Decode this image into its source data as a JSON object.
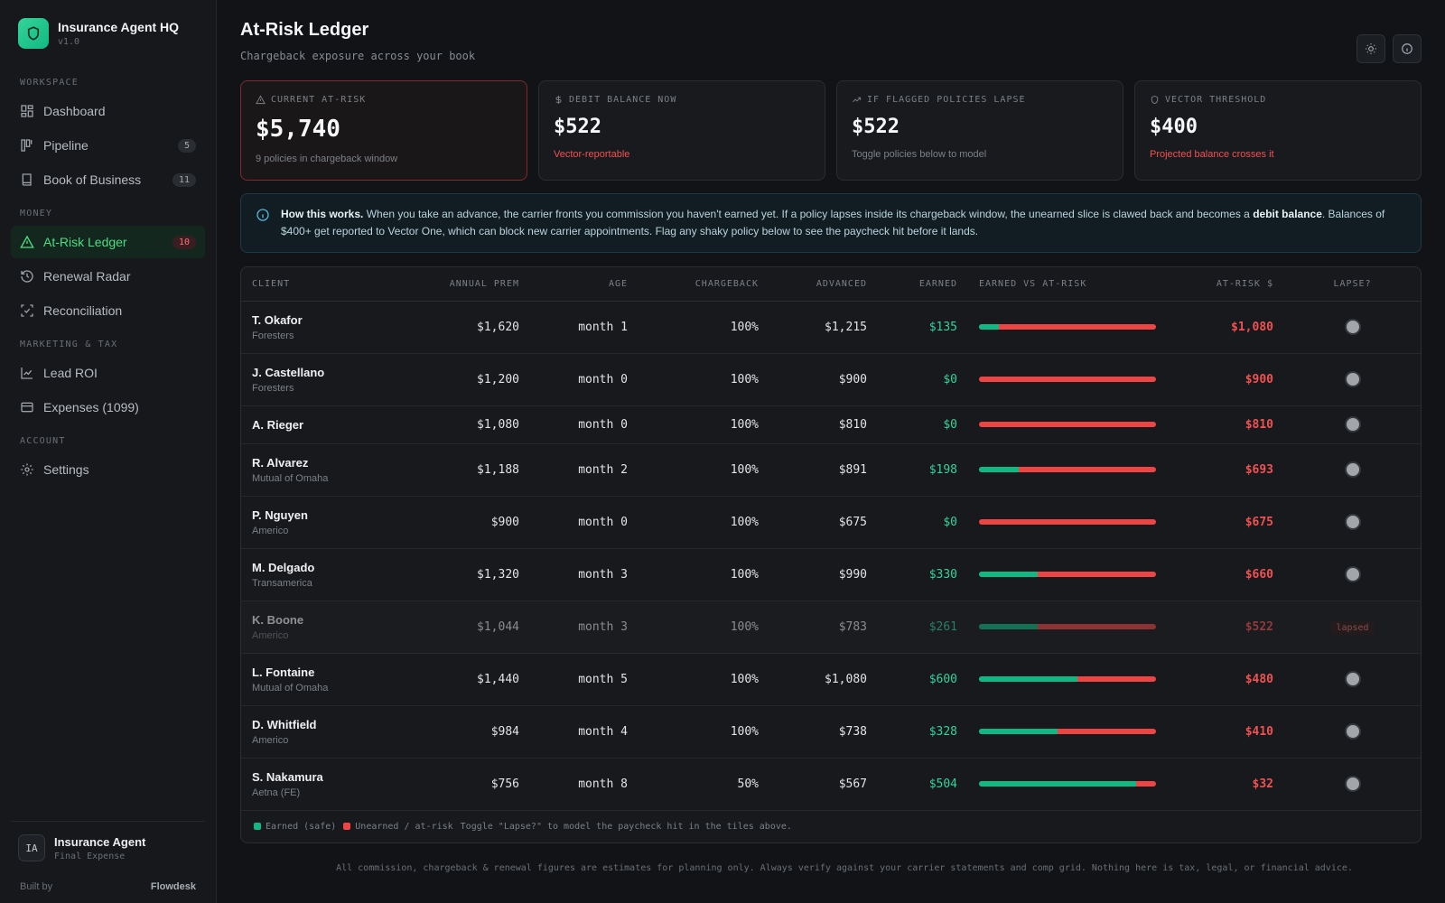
{
  "brand": {
    "title": "Insurance Agent HQ",
    "version": "v1.0",
    "logo_icon": "shield-icon"
  },
  "sidebar": {
    "sections": {
      "workspace": "WORKSPACE",
      "money": "MONEY",
      "marketing": "MARKETING & TAX",
      "account": "ACCOUNT"
    },
    "items": {
      "dashboard": {
        "label": "Dashboard",
        "icon": "grid-icon"
      },
      "pipeline": {
        "label": "Pipeline",
        "badge": "5",
        "icon": "kanban-icon"
      },
      "book": {
        "label": "Book of Business",
        "badge": "11",
        "icon": "book-icon"
      },
      "ledger": {
        "label": "At-Risk Ledger",
        "badge": "10",
        "icon": "warning-icon"
      },
      "renewal": {
        "label": "Renewal Radar",
        "icon": "history-icon"
      },
      "reconciliation": {
        "label": "Reconciliation",
        "icon": "scan-icon"
      },
      "lead_roi": {
        "label": "Lead ROI",
        "icon": "line-chart-icon"
      },
      "expenses": {
        "label": "Expenses (1099)",
        "icon": "card-icon"
      },
      "settings": {
        "label": "Settings",
        "icon": "gear-icon"
      }
    },
    "user": {
      "initials": "IA",
      "name": "Insurance Agent",
      "role": "Final Expense"
    },
    "built_by_label": "Built by",
    "built_by_name": "Flowdesk"
  },
  "header": {
    "title": "At-Risk Ledger",
    "subtitle": "Chargeback exposure across your book"
  },
  "stats": [
    {
      "label": "CURRENT AT-RISK",
      "value": "$5,740",
      "note": "9 policies in chargeback window"
    },
    {
      "label": "DEBIT BALANCE NOW",
      "value": "$522",
      "note": "Vector-reportable"
    },
    {
      "label": "IF FLAGGED POLICIES LAPSE",
      "value": "$522",
      "note": "Toggle policies below to model"
    },
    {
      "label": "VECTOR THRESHOLD",
      "value": "$400",
      "note": "Projected balance crosses it"
    }
  ],
  "info": {
    "lead": "How this works.",
    "text1": " When you take an advance, the carrier fronts you commission you haven't earned yet. If a policy lapses inside its chargeback window, the unearned slice is clawed back and becomes a ",
    "bold2": "debit balance",
    "text2": ". Balances of $400+ get reported to Vector One, which can block new carrier appointments. Flag any shaky policy below to see the paycheck hit before it lands."
  },
  "table": {
    "columns": [
      "CLIENT",
      "ANNUAL PREM",
      "AGE",
      "CHARGEBACK",
      "ADVANCED",
      "EARNED",
      "EARNED VS AT-RISK",
      "AT-RISK $",
      "LAPSE?"
    ],
    "rows": [
      {
        "name": "T. Okafor",
        "carrier": "Foresters",
        "prem": "$1,620",
        "age": "month 1",
        "chargeback": "100%",
        "advanced": "$1,215",
        "earned": "$135",
        "earned_pct": 11.1,
        "at_risk": "$1,080",
        "lapsed": false
      },
      {
        "name": "J. Castellano",
        "carrier": "Foresters",
        "prem": "$1,200",
        "age": "month 0",
        "chargeback": "100%",
        "advanced": "$900",
        "earned": "$0",
        "earned_pct": 0,
        "at_risk": "$900",
        "lapsed": false
      },
      {
        "name": "A. Rieger",
        "carrier": "",
        "prem": "$1,080",
        "age": "month 0",
        "chargeback": "100%",
        "advanced": "$810",
        "earned": "$0",
        "earned_pct": 0,
        "at_risk": "$810",
        "lapsed": false
      },
      {
        "name": "R. Alvarez",
        "carrier": "Mutual of Omaha",
        "prem": "$1,188",
        "age": "month 2",
        "chargeback": "100%",
        "advanced": "$891",
        "earned": "$198",
        "earned_pct": 22.2,
        "at_risk": "$693",
        "lapsed": false
      },
      {
        "name": "P. Nguyen",
        "carrier": "Americo",
        "prem": "$900",
        "age": "month 0",
        "chargeback": "100%",
        "advanced": "$675",
        "earned": "$0",
        "earned_pct": 0,
        "at_risk": "$675",
        "lapsed": false
      },
      {
        "name": "M. Delgado",
        "carrier": "Transamerica",
        "prem": "$1,320",
        "age": "month 3",
        "chargeback": "100%",
        "advanced": "$990",
        "earned": "$330",
        "earned_pct": 33.3,
        "at_risk": "$660",
        "lapsed": false
      },
      {
        "name": "K. Boone",
        "carrier": "Americo",
        "prem": "$1,044",
        "age": "month 3",
        "chargeback": "100%",
        "advanced": "$783",
        "earned": "$261",
        "earned_pct": 33.3,
        "at_risk": "$522",
        "lapsed": true,
        "lapsed_label": "lapsed"
      },
      {
        "name": "L. Fontaine",
        "carrier": "Mutual of Omaha",
        "prem": "$1,440",
        "age": "month 5",
        "chargeback": "100%",
        "advanced": "$1,080",
        "earned": "$600",
        "earned_pct": 55.6,
        "at_risk": "$480",
        "lapsed": false
      },
      {
        "name": "D. Whitfield",
        "carrier": "Americo",
        "prem": "$984",
        "age": "month 4",
        "chargeback": "100%",
        "advanced": "$738",
        "earned": "$328",
        "earned_pct": 44.4,
        "at_risk": "$410",
        "lapsed": false
      },
      {
        "name": "S. Nakamura",
        "carrier": "Aetna (FE)",
        "prem": "$756",
        "age": "month 8",
        "chargeback": "50%",
        "advanced": "$567",
        "earned": "$504",
        "earned_pct": 88.9,
        "at_risk": "$32",
        "lapsed": false
      }
    ]
  },
  "legend": {
    "earned": "Earned (safe)",
    "unearned": "Unearned / at-risk",
    "hint": "Toggle \"Lapse?\" to model the paycheck hit in the tiles above."
  },
  "disclaimer": "All commission, chargeback & renewal figures are estimates for planning only. Always verify against your carrier statements and comp grid. Nothing here is tax, legal, or financial advice.",
  "colors": {
    "accent": "#10b981",
    "danger": "#ef4444",
    "bg": "#111316"
  }
}
